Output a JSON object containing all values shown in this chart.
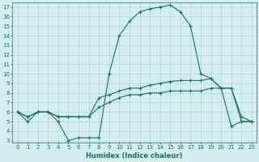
{
  "xlabel": "Humidex (Indice chaleur)",
  "ylabel": "",
  "background_color": "#d4eeee",
  "grid_color": "#b0d8d8",
  "line_color": "#1a6b6b",
  "xlim": [
    -0.5,
    23.5
  ],
  "ylim": [
    2.8,
    17.5
  ],
  "xticks": [
    0,
    1,
    2,
    3,
    4,
    5,
    6,
    7,
    8,
    9,
    10,
    11,
    12,
    13,
    14,
    15,
    16,
    17,
    18,
    19,
    20,
    21,
    22,
    23
  ],
  "yticks": [
    3,
    4,
    5,
    6,
    7,
    8,
    9,
    10,
    11,
    12,
    13,
    14,
    15,
    16,
    17
  ],
  "line1_x": [
    0,
    1,
    2,
    3,
    4,
    5,
    6,
    7,
    8,
    9,
    10,
    11,
    12,
    13,
    14,
    15,
    16,
    17,
    18,
    19,
    20,
    21,
    22,
    23
  ],
  "line1_y": [
    6,
    5,
    6,
    6,
    5,
    3,
    3.3,
    3.3,
    3.3,
    10,
    14,
    15.5,
    16.5,
    16.8,
    17.0,
    17.2,
    16.5,
    15,
    10,
    9.5,
    8.5,
    4.5,
    5,
    5
  ],
  "line2_x": [
    0,
    1,
    2,
    3,
    4,
    5,
    6,
    7,
    8,
    9,
    10,
    11,
    12,
    13,
    14,
    15,
    16,
    17,
    18,
    19,
    20,
    21,
    22,
    23
  ],
  "line2_y": [
    6,
    5.5,
    6,
    6,
    5.5,
    5.5,
    5.5,
    5.5,
    7.5,
    7.8,
    8.2,
    8.5,
    8.5,
    8.8,
    9.0,
    9.2,
    9.3,
    9.3,
    9.3,
    9.5,
    8.5,
    8.5,
    5.5,
    5
  ],
  "line3_x": [
    0,
    1,
    2,
    3,
    4,
    5,
    6,
    7,
    8,
    9,
    10,
    11,
    12,
    13,
    14,
    15,
    16,
    17,
    18,
    19,
    20,
    21,
    22,
    23
  ],
  "line3_y": [
    6,
    5.5,
    6,
    6,
    5.5,
    5.5,
    5.5,
    5.5,
    6.5,
    7.0,
    7.5,
    7.8,
    7.8,
    8.0,
    8.0,
    8.2,
    8.2,
    8.2,
    8.2,
    8.5,
    8.5,
    8.5,
    5,
    5
  ]
}
